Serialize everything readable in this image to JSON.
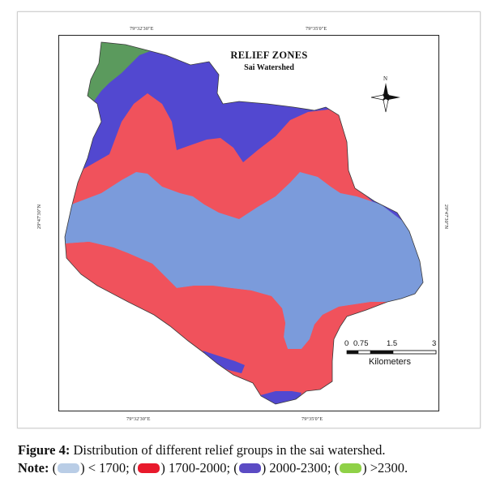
{
  "map": {
    "title": "RELIEF ZONES",
    "subtitle": "Sai Watershed",
    "north_label": "N",
    "coords": {
      "top_left": "79°32'30\"E",
      "top_right": "79°35'0\"E",
      "bottom_left": "79°32'30\"E",
      "bottom_right": "79°35'0\"E",
      "left": "29°47'30\"N",
      "right": "29°47'30\"N"
    },
    "scale": {
      "ticks": [
        "0",
        "0.75",
        "1.5",
        "3"
      ],
      "unit": "Kilometers"
    },
    "zones": [
      {
        "range": "< 1700",
        "color": "#7b9bdb"
      },
      {
        "range": "1700-2000",
        "color": "#f0525c"
      },
      {
        "range": "2000-2300",
        "color": "#5248d0"
      },
      {
        "range": ">2300",
        "color": "#5b9a5d"
      }
    ]
  },
  "caption": {
    "figure_label": "Figure 4:",
    "figure_text": " Distribution of different relief groups in the sai watershed.",
    "note_label": "Note:",
    "legend_items": [
      {
        "text": "< 1700;",
        "swatch_color": "#b9cde6"
      },
      {
        "text": "1700-2000;",
        "swatch_color": "#e8192c"
      },
      {
        "text": "2000-2300;",
        "swatch_color": "#5b4bc4"
      },
      {
        "text": ">2300.",
        "swatch_color": "#8fd147"
      }
    ]
  }
}
